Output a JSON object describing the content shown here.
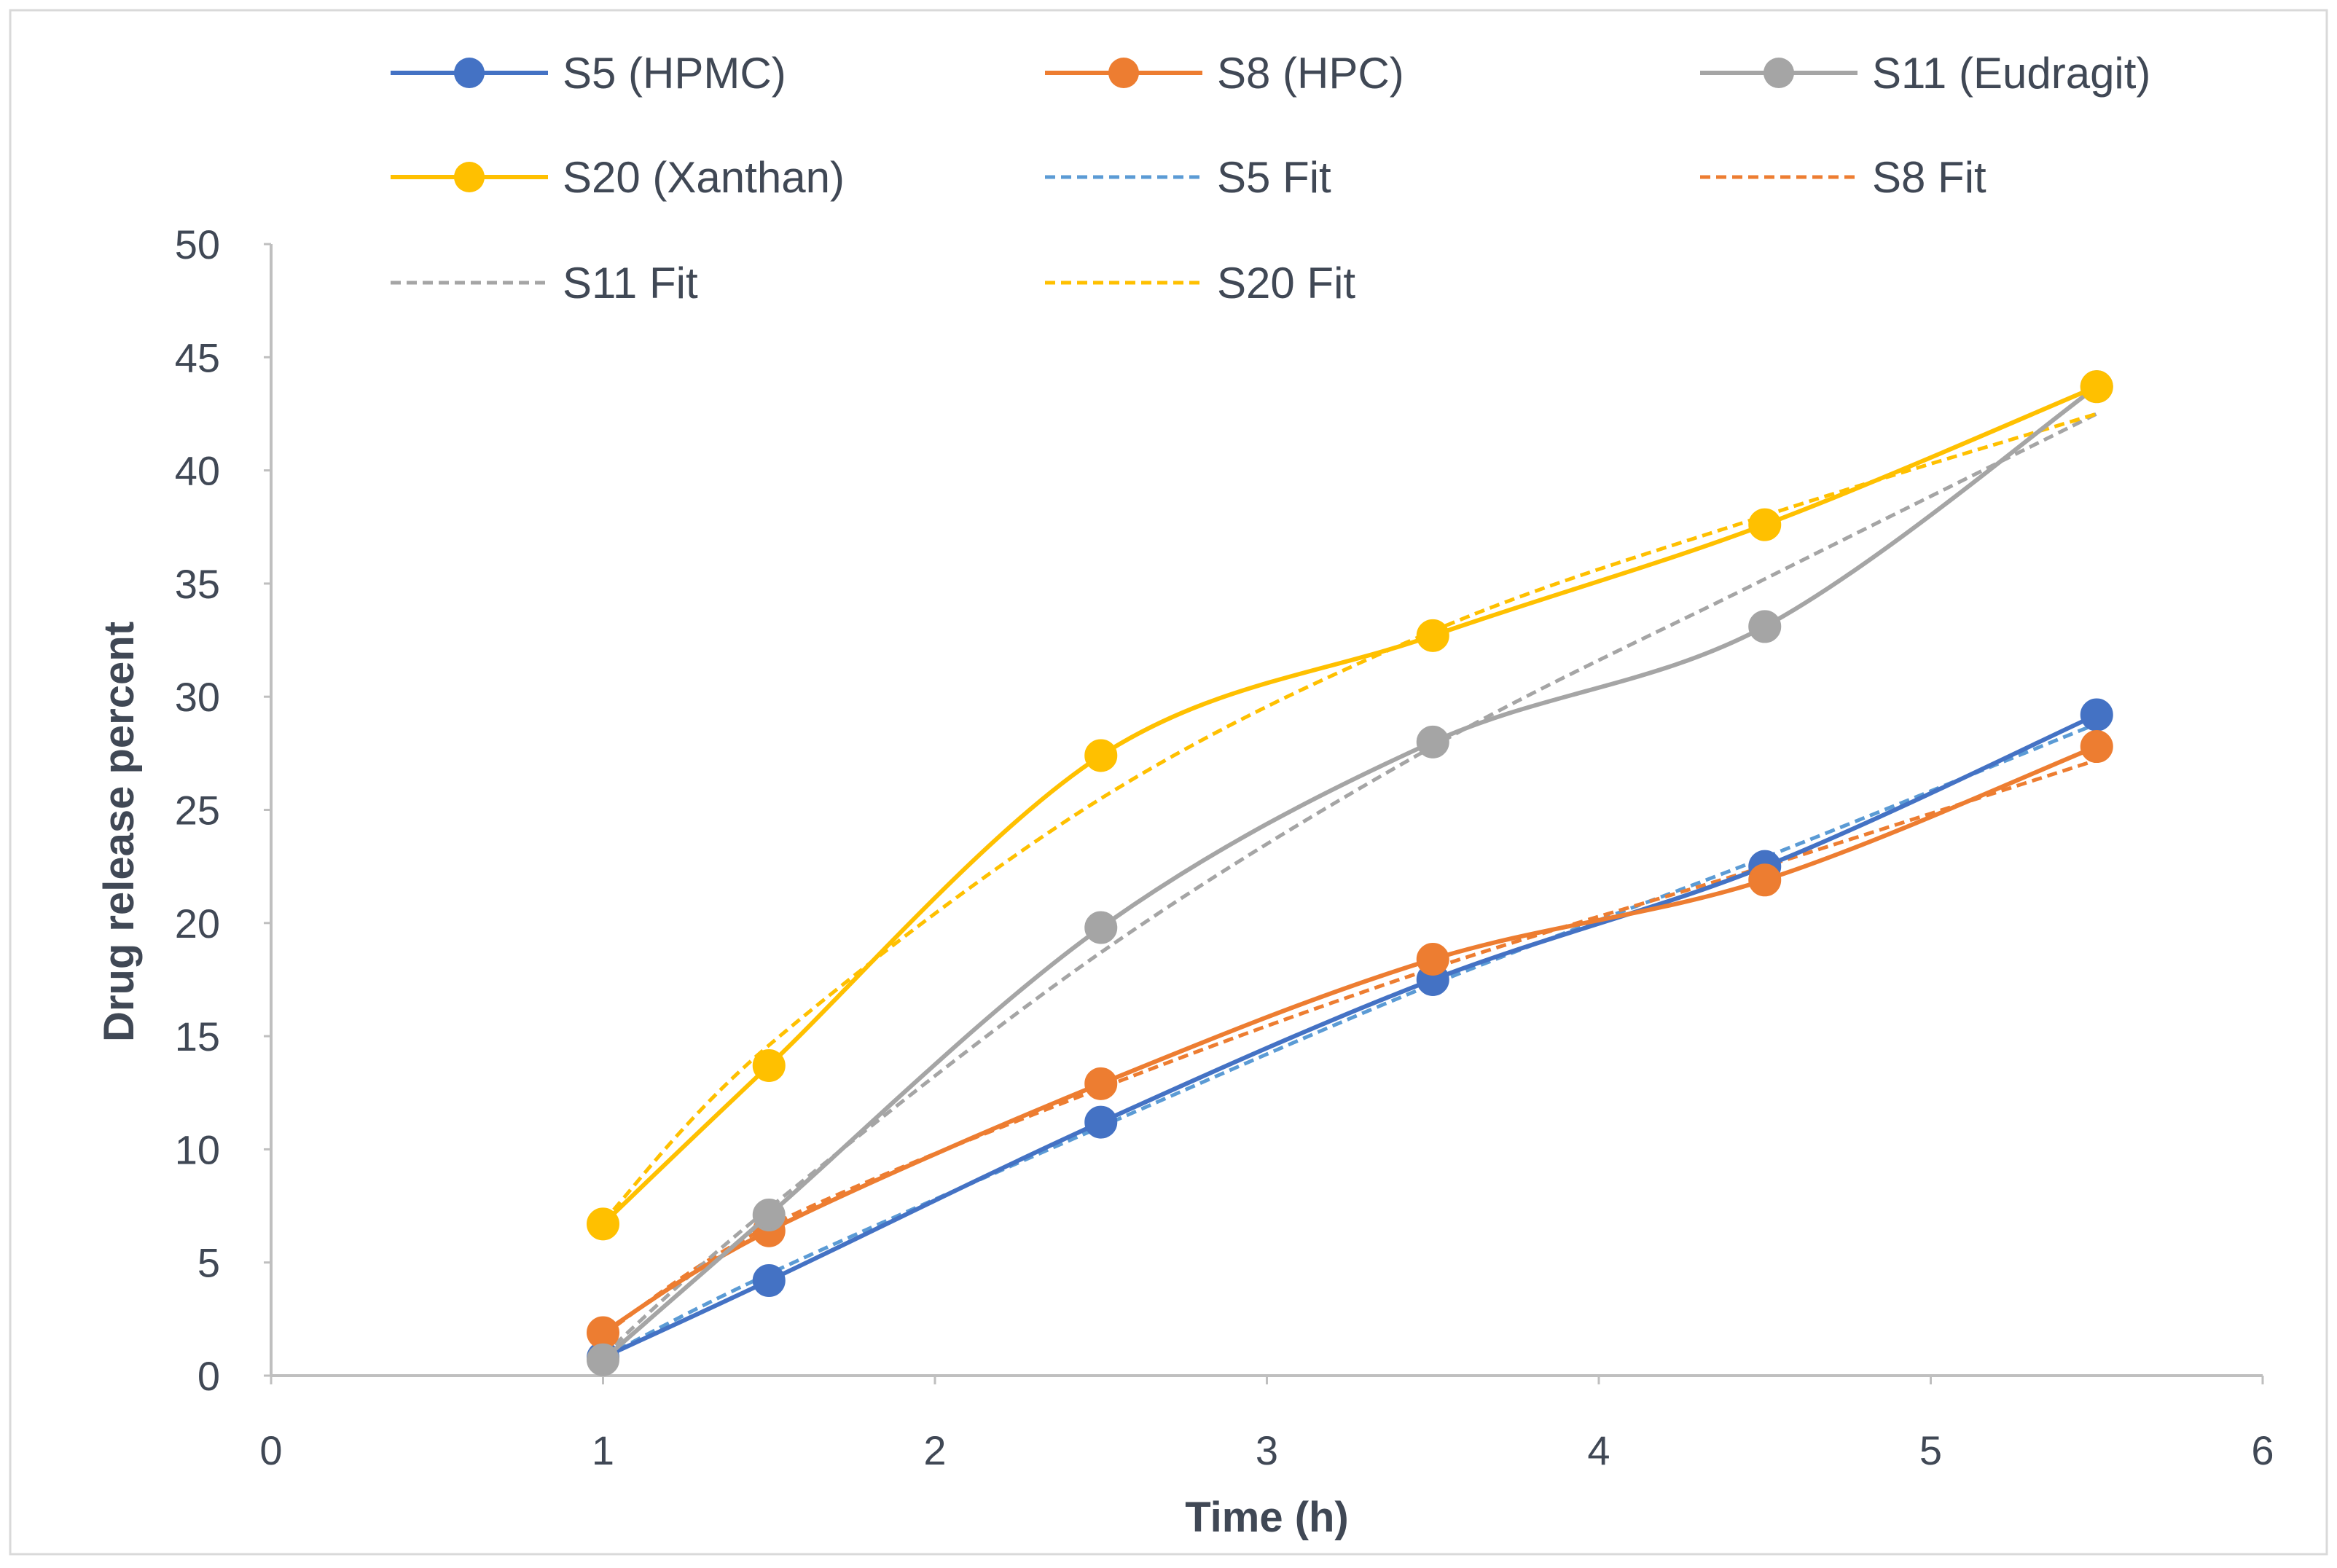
{
  "chart_data": {
    "type": "line",
    "title": "",
    "xlabel": "Time (h)",
    "ylabel": "Drug release percent",
    "xlim": [
      0,
      6
    ],
    "ylim": [
      0,
      50
    ],
    "xticks": [
      0,
      1,
      2,
      3,
      4,
      5,
      6
    ],
    "yticks": [
      0,
      5,
      10,
      15,
      20,
      25,
      30,
      35,
      40,
      45,
      50
    ],
    "x": [
      1,
      1.5,
      2.5,
      3.5,
      4.5,
      5.5
    ],
    "grid": false,
    "legend_position": "top",
    "series": [
      {
        "name": "S5 (HPMC)",
        "color": "#4472c4",
        "style": "solid",
        "markers": true,
        "values": [
          0.8,
          4.2,
          11.2,
          17.5,
          22.5,
          29.2
        ]
      },
      {
        "name": "S8 (HPC)",
        "color": "#ed7d31",
        "style": "solid",
        "markers": true,
        "values": [
          1.9,
          6.4,
          12.9,
          18.4,
          21.9,
          27.8
        ]
      },
      {
        "name": "S11 (Eudragit)",
        "color": "#a5a5a5",
        "style": "solid",
        "markers": true,
        "values": [
          0.7,
          7.1,
          19.8,
          28.0,
          33.1,
          43.7
        ]
      },
      {
        "name": "S20 (Xanthan)",
        "color": "#ffc000",
        "style": "solid",
        "markers": true,
        "values": [
          6.7,
          13.7,
          27.4,
          32.7,
          37.6,
          43.7
        ]
      },
      {
        "name": "S5 Fit",
        "color": "#5b9bd5",
        "style": "dashed",
        "markers": false,
        "values": [
          0.8,
          4.5,
          11.0,
          17.3,
          22.9,
          28.8
        ]
      },
      {
        "name": "S8 Fit",
        "color": "#ed7d31",
        "style": "dashed",
        "markers": false,
        "values": [
          1.8,
          6.6,
          12.7,
          18.0,
          22.5,
          27.2
        ]
      },
      {
        "name": "S11 Fit",
        "color": "#a5a5a5",
        "style": "dashed",
        "markers": false,
        "values": [
          0.9,
          7.4,
          18.7,
          27.8,
          35.2,
          42.5
        ]
      },
      {
        "name": "S20 Fit",
        "color": "#ffc000",
        "style": "dashed",
        "markers": false,
        "values": [
          6.8,
          14.6,
          25.5,
          32.9,
          38.0,
          42.5
        ]
      }
    ]
  }
}
